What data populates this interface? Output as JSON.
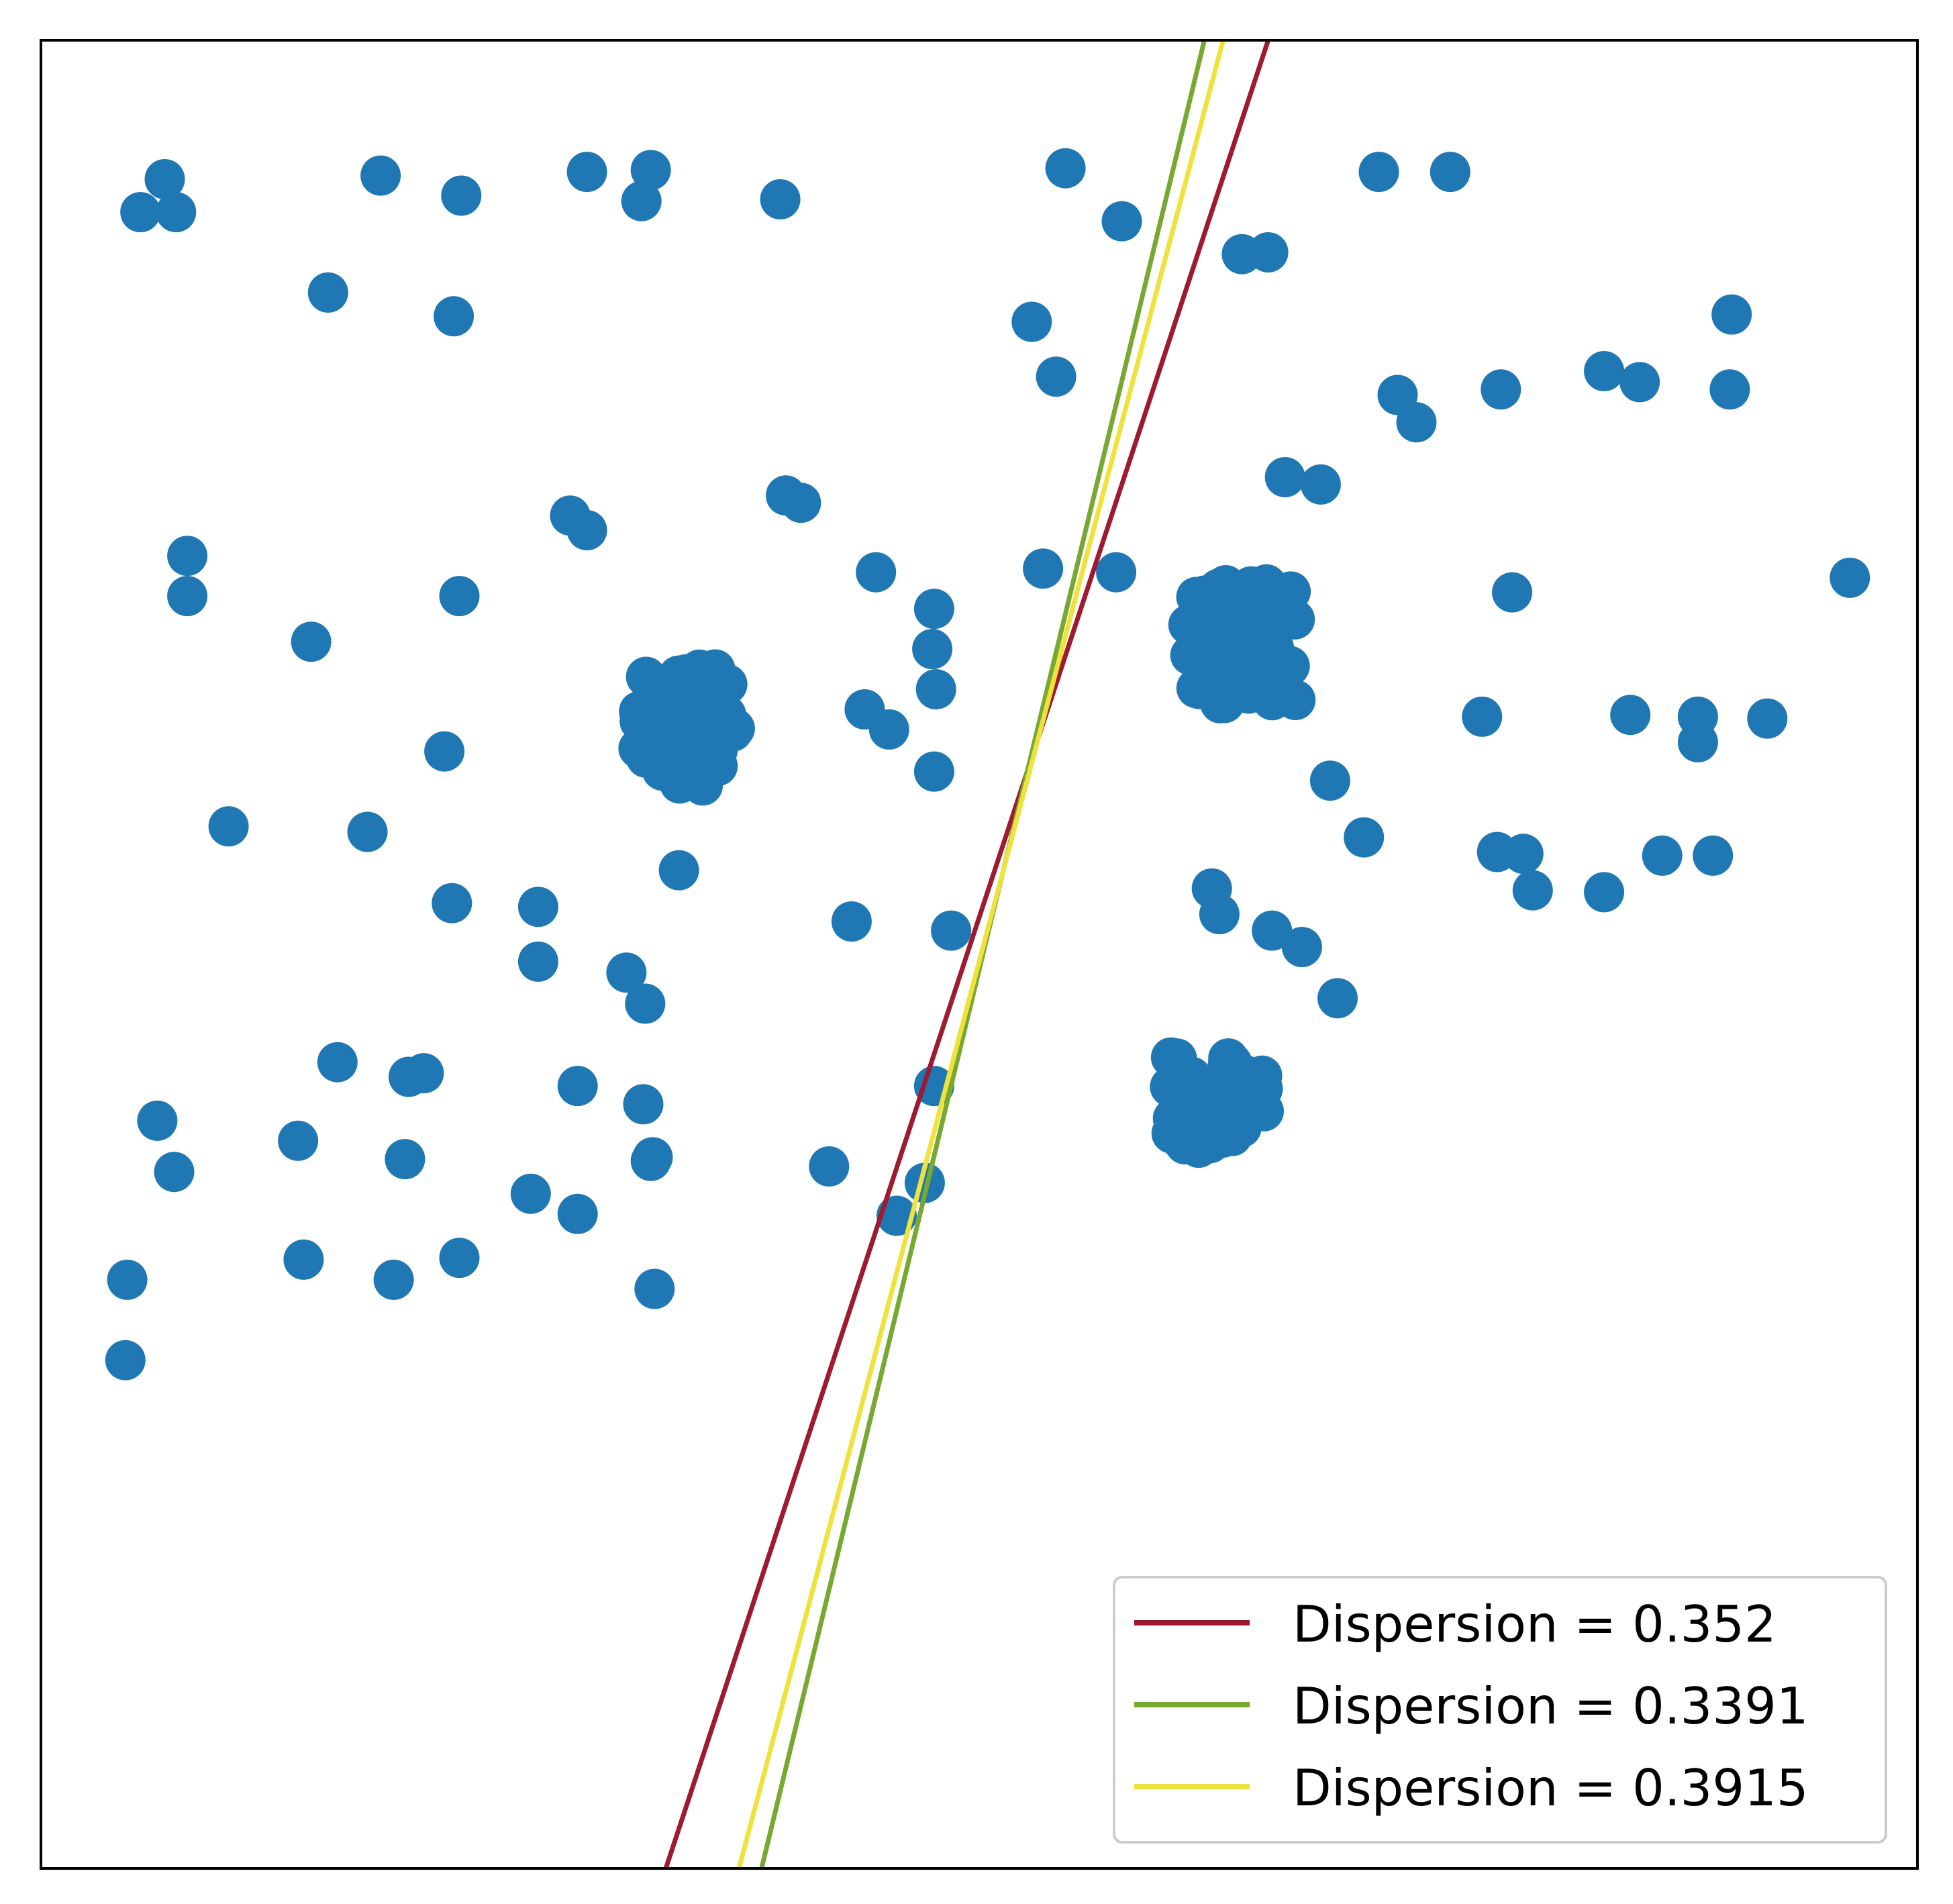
{
  "chart_data": {
    "type": "scatter",
    "title": "",
    "xlabel": "",
    "ylabel": "",
    "xlim": [
      0,
      100
    ],
    "ylim": [
      0,
      100
    ],
    "grid": false,
    "ticks": false,
    "point_color": "#1f77b4",
    "points": [
      [
        6.6,
        92.4
      ],
      [
        7.2,
        90.6
      ],
      [
        5.3,
        90.6
      ],
      [
        18.1,
        92.6
      ],
      [
        22.4,
        91.5
      ],
      [
        15.3,
        86.2
      ],
      [
        22.0,
        84.9
      ],
      [
        29.1,
        92.8
      ],
      [
        32.5,
        92.9
      ],
      [
        32.0,
        91.2
      ],
      [
        39.4,
        91.3
      ],
      [
        54.6,
        93.0
      ],
      [
        57.6,
        90.1
      ],
      [
        71.3,
        92.8
      ],
      [
        75.1,
        92.8
      ],
      [
        64.0,
        88.3
      ],
      [
        65.4,
        88.4
      ],
      [
        52.8,
        84.6
      ],
      [
        54.1,
        81.6
      ],
      [
        90.1,
        85.0
      ],
      [
        83.3,
        81.9
      ],
      [
        85.2,
        81.3
      ],
      [
        90.0,
        80.9
      ],
      [
        72.3,
        80.6
      ],
      [
        77.8,
        80.9
      ],
      [
        73.3,
        79.1
      ],
      [
        66.3,
        76.1
      ],
      [
        68.2,
        75.7
      ],
      [
        39.7,
        75.1
      ],
      [
        40.5,
        74.7
      ],
      [
        28.2,
        74.0
      ],
      [
        29.1,
        73.2
      ],
      [
        7.8,
        71.8
      ],
      [
        7.8,
        69.6
      ],
      [
        22.3,
        69.6
      ],
      [
        14.4,
        67.1
      ],
      [
        44.5,
        70.9
      ],
      [
        53.4,
        71.1
      ],
      [
        57.3,
        70.9
      ],
      [
        47.6,
        68.9
      ],
      [
        78.4,
        69.8
      ],
      [
        96.4,
        70.6
      ],
      [
        47.5,
        66.7
      ],
      [
        47.7,
        64.5
      ],
      [
        43.9,
        63.4
      ],
      [
        45.2,
        62.3
      ],
      [
        21.5,
        61.1
      ],
      [
        47.6,
        60.0
      ],
      [
        10.0,
        57.0
      ],
      [
        17.4,
        56.7
      ],
      [
        68.7,
        59.5
      ],
      [
        76.8,
        63.0
      ],
      [
        84.7,
        63.1
      ],
      [
        88.3,
        63.0
      ],
      [
        88.3,
        61.6
      ],
      [
        92.0,
        62.9
      ],
      [
        62.4,
        53.6
      ],
      [
        70.5,
        56.4
      ],
      [
        77.6,
        55.6
      ],
      [
        79.0,
        55.5
      ],
      [
        79.5,
        53.5
      ],
      [
        86.4,
        55.4
      ],
      [
        89.1,
        55.4
      ],
      [
        83.3,
        53.4
      ],
      [
        34.0,
        54.6
      ],
      [
        21.9,
        52.8
      ],
      [
        26.5,
        52.6
      ],
      [
        62.8,
        52.2
      ],
      [
        43.2,
        51.8
      ],
      [
        48.5,
        51.3
      ],
      [
        65.6,
        51.3
      ],
      [
        67.2,
        50.4
      ],
      [
        26.5,
        49.6
      ],
      [
        31.2,
        49.0
      ],
      [
        32.2,
        47.3
      ],
      [
        69.1,
        47.6
      ],
      [
        15.8,
        44.1
      ],
      [
        19.6,
        43.3
      ],
      [
        20.4,
        43.5
      ],
      [
        28.6,
        42.8
      ],
      [
        32.1,
        41.8
      ],
      [
        47.6,
        42.8
      ],
      [
        32.6,
        38.9
      ],
      [
        6.2,
        40.9
      ],
      [
        7.1,
        38.1
      ],
      [
        13.7,
        39.8
      ],
      [
        19.4,
        38.8
      ],
      [
        32.5,
        38.7
      ],
      [
        42.0,
        38.4
      ],
      [
        47.1,
        37.5
      ],
      [
        26.1,
        36.9
      ],
      [
        28.6,
        35.8
      ],
      [
        45.6,
        35.7
      ],
      [
        14.0,
        33.3
      ],
      [
        18.8,
        32.2
      ],
      [
        22.3,
        33.4
      ],
      [
        32.7,
        31.7
      ],
      [
        4.6,
        32.2
      ],
      [
        4.5,
        27.8
      ]
    ],
    "clusters": [
      {
        "center": [
          34.4,
          62.4
        ],
        "count": 60,
        "spread_x": 2.6,
        "spread_y": 3.2
      },
      {
        "center": [
          64.0,
          67.0
        ],
        "count": 70,
        "spread_x": 3.0,
        "spread_y": 3.3
      },
      {
        "center": [
          62.6,
          41.9
        ],
        "count": 45,
        "spread_x": 2.6,
        "spread_y": 2.5
      }
    ],
    "series": [
      {
        "name": "Dispersion = 0.352",
        "color": "#9e1a2e",
        "type": "line",
        "x": [
          33.3,
          65.4
        ],
        "y": [
          0,
          100
        ]
      },
      {
        "name": "Dispersion = 0.3391",
        "color": "#77a832",
        "type": "line",
        "x": [
          38.4,
          62.0
        ],
        "y": [
          0,
          100
        ]
      },
      {
        "name": "Dispersion = 0.3915",
        "color": "#efe23c",
        "type": "line",
        "x": [
          37.2,
          63.0
        ],
        "y": [
          0,
          100
        ]
      }
    ],
    "legend": {
      "position": "lower right",
      "entries": [
        "Dispersion = 0.352",
        "Dispersion = 0.3391",
        "Dispersion = 0.3915"
      ]
    }
  }
}
